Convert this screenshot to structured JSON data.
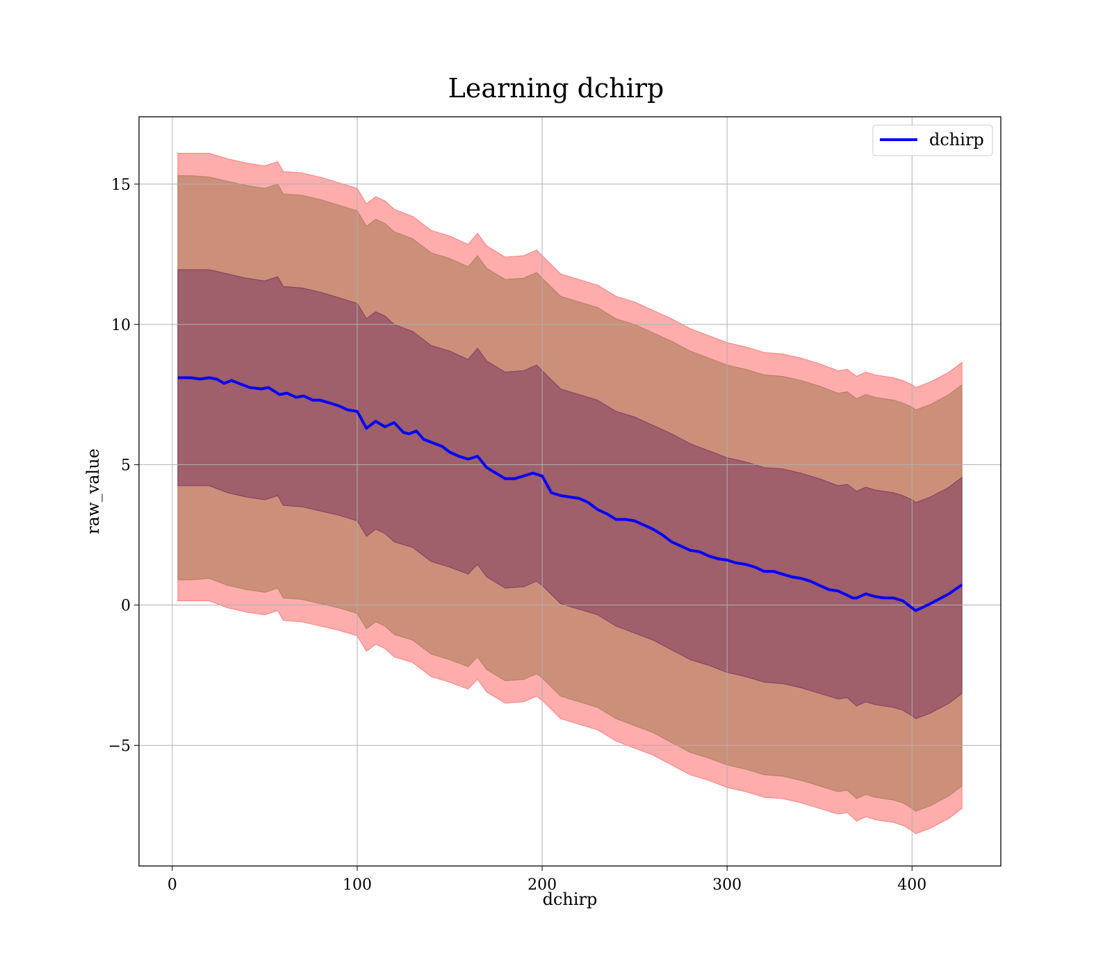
{
  "chart_data": {
    "type": "line",
    "title": "Learning dchirp",
    "xlabel": "dchirp",
    "ylabel": "raw_value",
    "xlim": [
      -18,
      448
    ],
    "ylim": [
      -9.3,
      17.4
    ],
    "xticks": [
      0,
      100,
      200,
      300,
      400
    ],
    "yticks": [
      -5,
      0,
      5,
      10,
      15
    ],
    "xtick_labels": [
      "0",
      "100",
      "200",
      "300",
      "400"
    ],
    "ytick_labels": [
      "−5",
      "0",
      "5",
      "10",
      "15"
    ],
    "grid": true,
    "legend_position": "top-right",
    "series": [
      {
        "name": "dchirp",
        "color": "#0000ff",
        "x": [
          3,
          10,
          15,
          20,
          24,
          28,
          32,
          36,
          42,
          48,
          52,
          58,
          62,
          67,
          71,
          76,
          80,
          85,
          90,
          95,
          100,
          105,
          110,
          115,
          120,
          125,
          128,
          132,
          136,
          140,
          146,
          150,
          155,
          160,
          165,
          170,
          175,
          180,
          185,
          190,
          195,
          200,
          205,
          210,
          215,
          220,
          225,
          230,
          235,
          240,
          245,
          250,
          255,
          260,
          265,
          270,
          275,
          280,
          285,
          290,
          295,
          300,
          305,
          310,
          315,
          320,
          325,
          330,
          335,
          340,
          345,
          350,
          355,
          360,
          365,
          368,
          370,
          375,
          380,
          385,
          390,
          395,
          400,
          402,
          410,
          420,
          427
        ],
        "values": [
          8.1,
          8.1,
          8.05,
          8.1,
          8.05,
          7.9,
          8.0,
          7.9,
          7.75,
          7.7,
          7.75,
          7.5,
          7.55,
          7.4,
          7.45,
          7.3,
          7.3,
          7.2,
          7.1,
          6.95,
          6.9,
          6.3,
          6.55,
          6.35,
          6.5,
          6.15,
          6.1,
          6.2,
          5.9,
          5.8,
          5.65,
          5.45,
          5.3,
          5.2,
          5.3,
          4.9,
          4.7,
          4.5,
          4.5,
          4.6,
          4.7,
          4.6,
          4.0,
          3.9,
          3.85,
          3.8,
          3.65,
          3.4,
          3.25,
          3.05,
          3.05,
          3.0,
          2.85,
          2.7,
          2.5,
          2.25,
          2.1,
          1.95,
          1.9,
          1.75,
          1.65,
          1.6,
          1.5,
          1.45,
          1.35,
          1.2,
          1.2,
          1.1,
          1.0,
          0.95,
          0.85,
          0.7,
          0.55,
          0.5,
          0.35,
          0.25,
          0.25,
          0.4,
          0.3,
          0.25,
          0.25,
          0.15,
          -0.1,
          -0.2,
          0.05,
          0.4,
          0.72
        ]
      }
    ],
    "bands": [
      {
        "color": "#ff8080",
        "opacity": 0.65,
        "x": [
          3,
          10,
          20,
          30,
          40,
          50,
          57,
          60,
          70,
          80,
          90,
          100,
          105,
          110,
          115,
          120,
          130,
          140,
          150,
          160,
          165,
          170,
          180,
          190,
          197,
          200,
          210,
          220,
          230,
          240,
          250,
          260,
          270,
          280,
          290,
          300,
          310,
          320,
          330,
          340,
          350,
          360,
          365,
          370,
          375,
          380,
          385,
          390,
          395,
          400,
          402,
          410,
          420,
          427
        ],
        "upper": [
          16.1,
          16.1,
          16.1,
          15.9,
          15.75,
          15.65,
          15.8,
          15.45,
          15.4,
          15.25,
          15.05,
          14.85,
          14.3,
          14.55,
          14.4,
          14.1,
          13.85,
          13.35,
          13.15,
          12.85,
          13.25,
          12.8,
          12.4,
          12.45,
          12.65,
          12.45,
          11.8,
          11.6,
          11.4,
          11.0,
          10.8,
          10.5,
          10.2,
          9.85,
          9.6,
          9.35,
          9.2,
          9.0,
          8.95,
          8.8,
          8.6,
          8.35,
          8.4,
          8.15,
          8.3,
          8.2,
          8.15,
          8.1,
          8.0,
          7.85,
          7.75,
          7.95,
          8.3,
          8.65
        ],
        "lower": [
          0.15,
          0.15,
          0.15,
          -0.1,
          -0.25,
          -0.35,
          -0.2,
          -0.55,
          -0.6,
          -0.75,
          -0.9,
          -1.1,
          -1.65,
          -1.4,
          -1.55,
          -1.85,
          -2.05,
          -2.55,
          -2.75,
          -3.0,
          -2.65,
          -3.1,
          -3.5,
          -3.45,
          -3.25,
          -3.4,
          -4.05,
          -4.25,
          -4.45,
          -4.85,
          -5.1,
          -5.35,
          -5.7,
          -6.05,
          -6.25,
          -6.5,
          -6.65,
          -6.85,
          -6.9,
          -7.05,
          -7.25,
          -7.45,
          -7.4,
          -7.7,
          -7.55,
          -7.65,
          -7.7,
          -7.75,
          -7.85,
          -8.05,
          -8.15,
          -7.95,
          -7.6,
          -7.25
        ]
      },
      {
        "color": "#b08060",
        "opacity": 0.65,
        "x": [
          3,
          10,
          20,
          30,
          40,
          50,
          57,
          60,
          70,
          80,
          90,
          100,
          105,
          110,
          115,
          120,
          130,
          140,
          150,
          160,
          165,
          170,
          180,
          190,
          197,
          200,
          210,
          220,
          230,
          240,
          250,
          260,
          270,
          280,
          290,
          300,
          310,
          320,
          330,
          340,
          350,
          360,
          365,
          370,
          375,
          380,
          385,
          390,
          395,
          400,
          402,
          410,
          420,
          427
        ],
        "upper": [
          15.3,
          15.3,
          15.25,
          15.1,
          14.95,
          14.85,
          15.0,
          14.65,
          14.6,
          14.45,
          14.25,
          14.05,
          13.5,
          13.75,
          13.6,
          13.3,
          13.05,
          12.55,
          12.35,
          12.05,
          12.45,
          12.0,
          11.6,
          11.65,
          11.85,
          11.65,
          11.0,
          10.8,
          10.6,
          10.2,
          10.0,
          9.7,
          9.4,
          9.05,
          8.8,
          8.55,
          8.4,
          8.2,
          8.15,
          8.0,
          7.8,
          7.55,
          7.6,
          7.35,
          7.5,
          7.4,
          7.35,
          7.3,
          7.2,
          7.05,
          6.95,
          7.15,
          7.5,
          7.85
        ],
        "lower": [
          0.9,
          0.9,
          0.95,
          0.7,
          0.55,
          0.45,
          0.6,
          0.25,
          0.2,
          0.05,
          -0.1,
          -0.3,
          -0.85,
          -0.6,
          -0.75,
          -1.05,
          -1.25,
          -1.75,
          -1.95,
          -2.2,
          -1.85,
          -2.3,
          -2.7,
          -2.65,
          -2.45,
          -2.6,
          -3.25,
          -3.45,
          -3.65,
          -4.05,
          -4.3,
          -4.55,
          -4.9,
          -5.25,
          -5.45,
          -5.7,
          -5.85,
          -6.05,
          -6.1,
          -6.25,
          -6.45,
          -6.65,
          -6.6,
          -6.9,
          -6.75,
          -6.85,
          -6.9,
          -6.95,
          -7.05,
          -7.25,
          -7.35,
          -7.15,
          -6.8,
          -6.45
        ]
      },
      {
        "color": "#804060",
        "opacity": 0.6,
        "x": [
          3,
          10,
          20,
          30,
          40,
          50,
          57,
          60,
          70,
          80,
          90,
          100,
          105,
          110,
          115,
          120,
          130,
          140,
          150,
          160,
          165,
          170,
          180,
          190,
          197,
          200,
          210,
          220,
          230,
          240,
          250,
          260,
          270,
          280,
          290,
          300,
          310,
          320,
          330,
          340,
          350,
          360,
          365,
          370,
          375,
          380,
          385,
          390,
          395,
          400,
          402,
          410,
          420,
          427
        ],
        "upper": [
          11.95,
          11.95,
          11.95,
          11.8,
          11.65,
          11.55,
          11.7,
          11.35,
          11.3,
          11.15,
          10.95,
          10.75,
          10.2,
          10.45,
          10.3,
          10.0,
          9.75,
          9.25,
          9.05,
          8.75,
          9.15,
          8.7,
          8.3,
          8.35,
          8.55,
          8.35,
          7.7,
          7.5,
          7.3,
          6.9,
          6.7,
          6.4,
          6.1,
          5.75,
          5.5,
          5.25,
          5.1,
          4.9,
          4.85,
          4.7,
          4.5,
          4.25,
          4.3,
          4.05,
          4.2,
          4.1,
          4.05,
          4.0,
          3.9,
          3.75,
          3.65,
          3.85,
          4.2,
          4.55
        ],
        "lower": [
          4.25,
          4.25,
          4.25,
          4.0,
          3.85,
          3.75,
          3.9,
          3.55,
          3.5,
          3.35,
          3.2,
          3.0,
          2.45,
          2.7,
          2.55,
          2.25,
          2.05,
          1.55,
          1.35,
          1.1,
          1.45,
          1.0,
          0.6,
          0.65,
          0.85,
          0.7,
          0.05,
          -0.15,
          -0.35,
          -0.75,
          -1.0,
          -1.25,
          -1.6,
          -1.95,
          -2.15,
          -2.4,
          -2.55,
          -2.75,
          -2.8,
          -2.95,
          -3.15,
          -3.35,
          -3.3,
          -3.6,
          -3.45,
          -3.55,
          -3.6,
          -3.65,
          -3.75,
          -3.95,
          -4.05,
          -3.85,
          -3.5,
          -3.15
        ]
      }
    ]
  }
}
